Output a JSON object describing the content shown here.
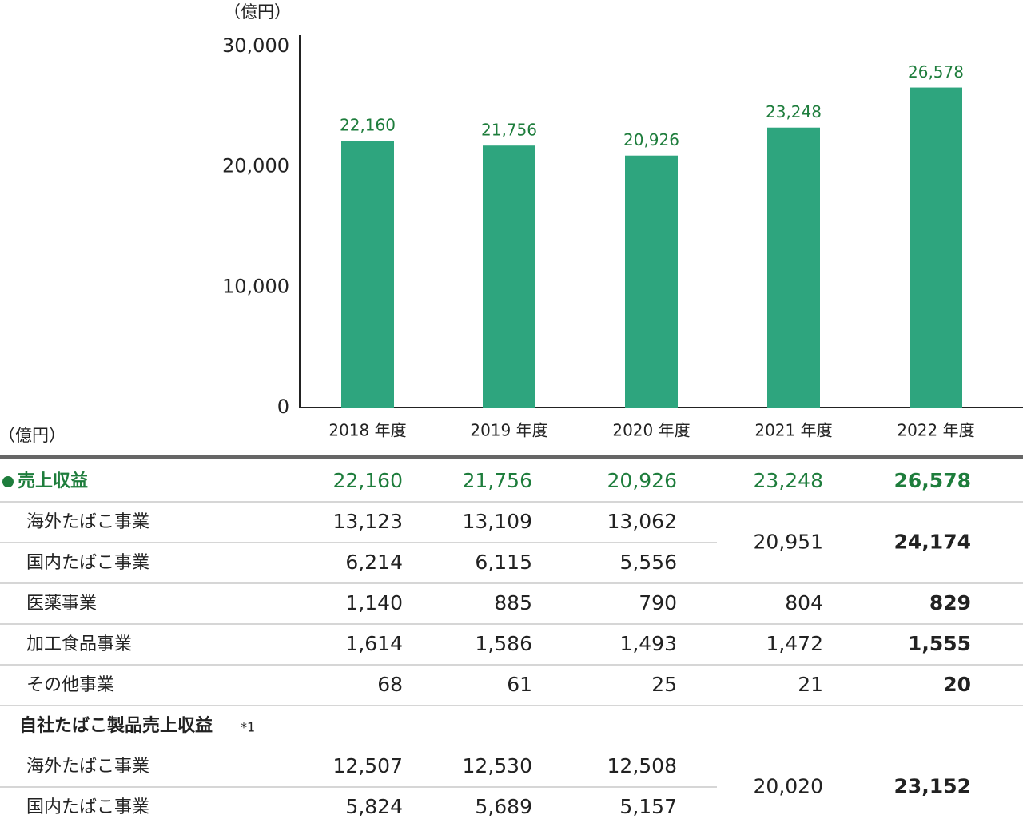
{
  "chart_data": {
    "type": "bar",
    "y_label": "（億円）",
    "categories": [
      "2018 年度",
      "2019 年度",
      "2020 年度",
      "2021 年度",
      "2022 年度"
    ],
    "values": [
      22160,
      21756,
      20926,
      23248,
      26578
    ],
    "value_labels": [
      "22,160",
      "21,756",
      "20,926",
      "23,248",
      "26,578"
    ],
    "color": "#2ea57e",
    "label_color": "#1e7d3c",
    "ylim": [
      0,
      30000
    ],
    "yticks": [
      0,
      {
        "value": 10000,
        "label": "10,000"
      },
      {
        "value": 20000,
        "label": "20,000"
      },
      {
        "value": 30000,
        "label": "30,000"
      }
    ]
  },
  "table": {
    "unit": "（億円）",
    "total": {
      "label": "売上収益",
      "values": [
        "22,160",
        "21,756",
        "20,926",
        "23,248",
        "26,578"
      ]
    },
    "tobacco": [
      {
        "label": "海外たばこ事業",
        "values": [
          "13,123",
          "13,109",
          "13,062"
        ]
      },
      {
        "label": "国内たばこ事業",
        "values": [
          "6,214",
          "6,115",
          "5,556"
        ]
      }
    ],
    "tobacco_combined": [
      "20,951",
      "24,174"
    ],
    "others": [
      {
        "label": "医薬事業",
        "values": [
          "1,140",
          "885",
          "790",
          "804",
          "829"
        ]
      },
      {
        "label": "加工食品事業",
        "values": [
          "1,614",
          "1,586",
          "1,493",
          "1,472",
          "1,555"
        ]
      },
      {
        "label": "その他事業",
        "values": [
          "68",
          "61",
          "25",
          "21",
          "20"
        ]
      }
    ],
    "own": {
      "title": "自社たばこ製品売上収益",
      "note": "*1",
      "rows": [
        {
          "label": "海外たばこ事業",
          "values": [
            "12,507",
            "12,530",
            "12,508"
          ]
        },
        {
          "label": "国内たばこ事業",
          "values": [
            "5,824",
            "5,689",
            "5,157"
          ]
        }
      ],
      "combined": [
        "20,020",
        "23,152"
      ]
    }
  }
}
